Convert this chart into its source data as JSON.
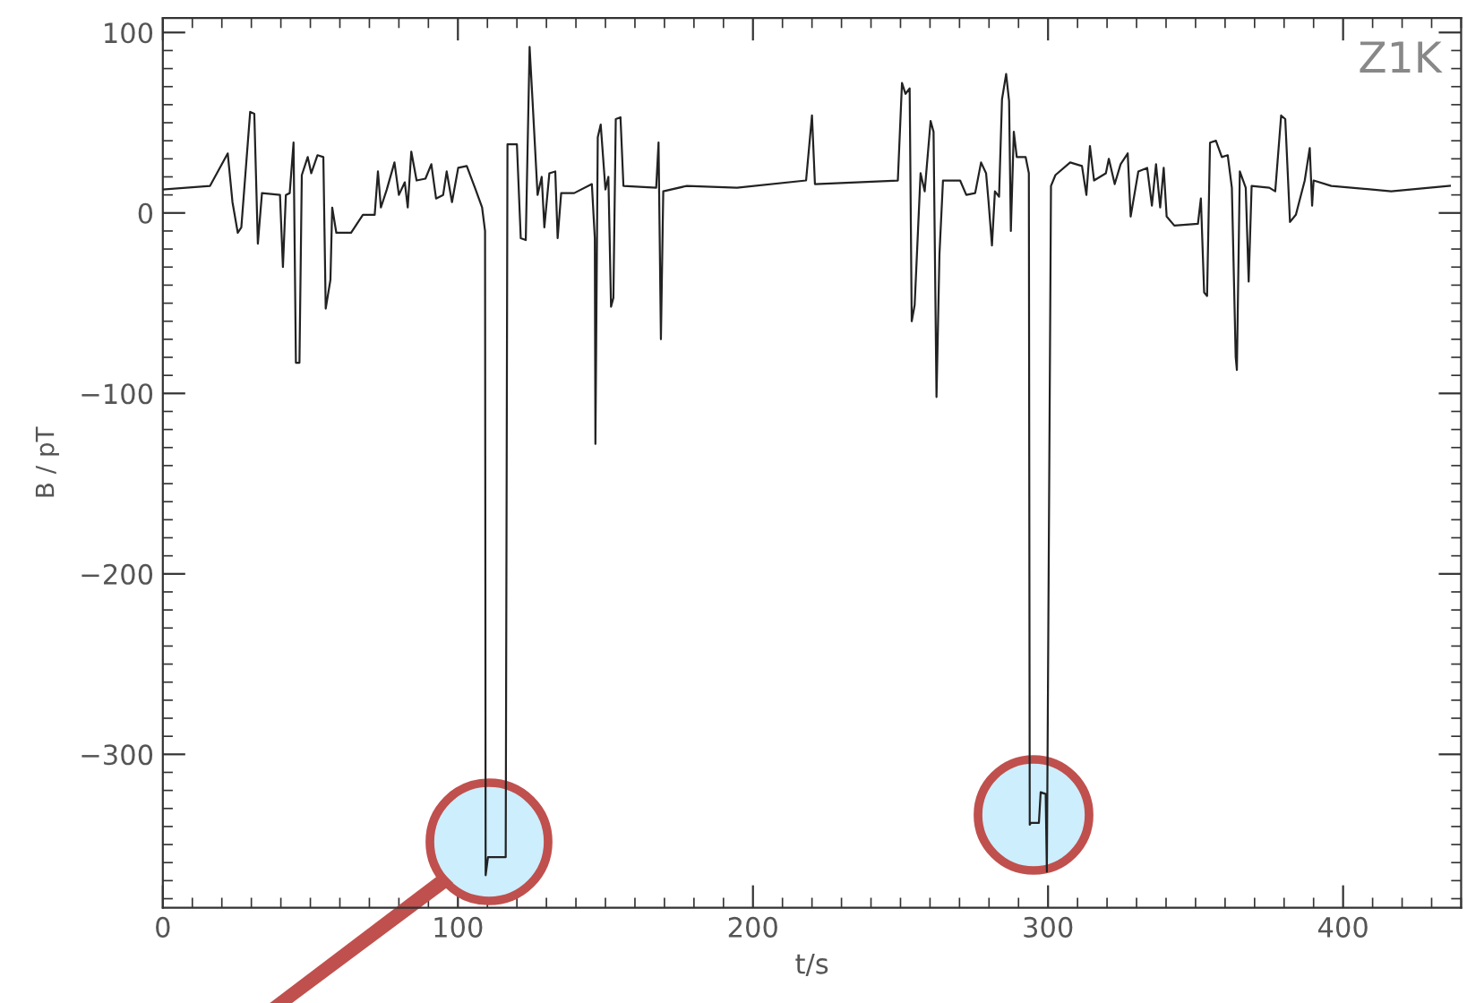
{
  "chart_data": {
    "type": "line",
    "xlabel": "t/s",
    "ylabel": "B / pT",
    "annotations": [
      "Z1K"
    ],
    "xlim": [
      0,
      440
    ],
    "ylim": [
      -385,
      108
    ],
    "xticks": [
      0,
      100,
      200,
      300,
      400
    ],
    "yticks": [
      -300,
      -200,
      -100,
      0,
      100
    ],
    "grid": false,
    "legend": false,
    "marker": "none",
    "line_style": "solid",
    "series": [
      {
        "color": "#222222",
        "x": [
          0,
          16,
          22,
          23.6,
          25.4,
          26.6,
          29.6,
          31,
          32.2,
          33.6,
          39.7,
          40.7,
          41.7,
          43,
          44.3,
          45.1,
          46.3,
          47.1,
          49.1,
          50.3,
          52.4,
          54.4,
          55.2,
          56.8,
          57.4,
          58.8,
          63.8,
          65.8,
          67.8,
          71.8,
          72.9,
          73.9,
          75.9,
          78.5,
          80,
          82,
          83,
          84.2,
          86,
          89,
          91,
          92.6,
          95,
          96.2,
          98,
          100.1,
          103,
          106,
          108.2,
          109.2,
          109.4,
          110.2,
          116,
          116.2,
          116.8,
          120,
          121.3,
          123,
          124.3,
          125.3,
          127,
          128.4,
          129.3,
          131,
          133,
          133.8,
          135,
          139.4,
          145.4,
          146.4,
          146.6,
          147.4,
          148.4,
          150,
          151,
          151.9,
          152.7,
          153.5,
          155.1,
          156.1,
          167.2,
          168,
          168.8,
          169.6,
          177.6,
          194.6,
          218,
          220,
          221,
          249.1,
          250.5,
          251.7,
          253.1,
          253.8,
          254.8,
          256.8,
          258.2,
          260.2,
          261.2,
          262.2,
          263.2,
          264.4,
          270.2,
          272.3,
          275.3,
          277.3,
          279,
          279.8,
          281,
          282,
          283.4,
          284.4,
          285.8,
          286.8,
          287.4,
          288.4,
          289.4,
          292.4,
          293.5,
          293.8,
          294.2,
          296.9,
          297.5,
          299.2,
          299.6,
          301,
          302.5,
          307.5,
          311.5,
          313,
          314.2,
          315.6,
          319.6,
          320.6,
          322.6,
          324.6,
          327,
          328,
          330.6,
          333.6,
          335.2,
          336.6,
          338,
          339.2,
          340.2,
          342.8,
          350.8,
          351.8,
          352.9,
          353.9,
          354.9,
          356.9,
          358.9,
          360.9,
          362.3,
          363.6,
          364,
          365,
          367,
          368,
          369,
          375,
          377,
          379,
          380.4,
          382,
          384,
          387,
          388.7,
          389.5,
          390,
          396,
          416.3,
          436.2
        ],
        "values": [
          13,
          15,
          33,
          6,
          -11,
          -8,
          56,
          55,
          -17,
          11,
          10,
          -30,
          10,
          11,
          39,
          -83,
          -83,
          21,
          31,
          22,
          32,
          31,
          -53,
          -37,
          3,
          -11,
          -11,
          -6,
          -1,
          -1,
          23,
          3,
          13,
          28,
          10,
          17,
          3,
          34,
          18,
          19,
          27,
          8,
          10,
          23,
          6,
          25,
          26,
          13,
          3,
          -10,
          -367,
          -357,
          -357,
          -357,
          38,
          38,
          -14,
          -15,
          92,
          62,
          10,
          20,
          -8,
          22,
          23,
          -14,
          11,
          11,
          16,
          -14,
          -128,
          42,
          49,
          13,
          20,
          -52,
          -47,
          52,
          53,
          15,
          14,
          39,
          -70,
          12,
          15,
          14,
          18,
          54,
          16,
          18,
          72,
          66,
          69,
          -60,
          -51,
          22,
          12,
          51,
          45,
          -102,
          -23,
          18,
          18,
          10,
          11,
          28,
          22,
          7,
          -18,
          12,
          9,
          63,
          77,
          62,
          -10,
          45,
          31,
          31,
          22,
          -339,
          -338,
          -338,
          -321,
          -322,
          -365,
          15,
          21,
          28,
          26,
          10,
          37,
          18,
          22,
          30,
          16,
          27,
          33,
          -2,
          23,
          25,
          4,
          27,
          3,
          25,
          -2,
          -7,
          -6,
          8,
          -44,
          -46,
          39,
          40,
          31,
          32,
          14,
          -80,
          -87,
          23,
          14,
          -38,
          15,
          14,
          12,
          54,
          52,
          -5,
          -1,
          18,
          36,
          4,
          18,
          15,
          12,
          15
        ]
      }
    ]
  }
}
